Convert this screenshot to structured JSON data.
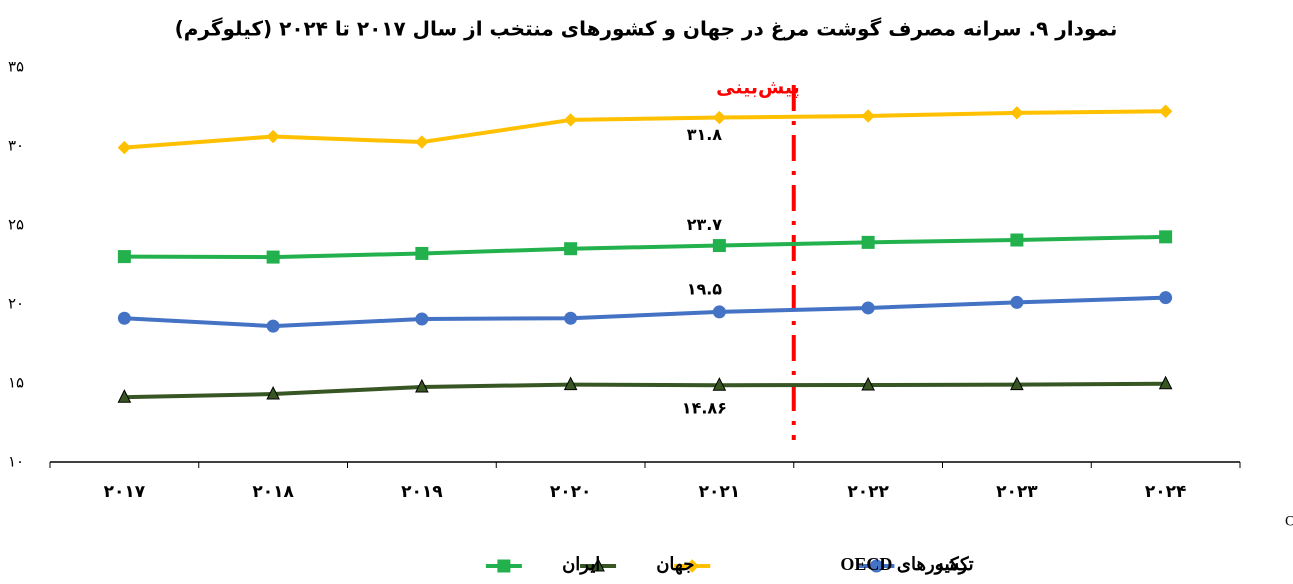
{
  "chart_data": {
    "type": "line",
    "title": "نمودار ۹. سرانه مصرف گوشت مرغ در جهان و کشورهای منتخب از سال ۲۰۱۷ تا ۲۰۲۴ (کیلوگرم)",
    "categories": [
      "۲۰۱۷",
      "۲۰۱۸",
      "۲۰۱۹",
      "۲۰۲۰",
      "۲۰۲۱",
      "۲۰۲۲",
      "۲۰۲۳",
      "۲۰۲۴"
    ],
    "series": [
      {
        "name": "ترکیه",
        "color": "#4472c4",
        "marker": "circle",
        "values": [
          19.1,
          18.6,
          19.05,
          19.1,
          19.5,
          19.75,
          20.1,
          20.4
        ],
        "value_labels": [
          null,
          null,
          null,
          null,
          "۱۹.۵",
          null,
          null,
          null
        ]
      },
      {
        "name": "کشورهای OECD",
        "color": "#ffc000",
        "marker": "diamond",
        "values": [
          29.9,
          30.6,
          30.25,
          31.65,
          31.8,
          31.9,
          32.1,
          32.2
        ],
        "value_labels": [
          null,
          null,
          null,
          null,
          "۳۱.۸",
          null,
          null,
          null
        ]
      },
      {
        "name": "جهان",
        "color": "#375623",
        "marker": "triangle",
        "values": [
          14.1,
          14.3,
          14.75,
          14.9,
          14.86,
          14.87,
          14.9,
          14.95
        ],
        "value_labels": [
          null,
          null,
          null,
          null,
          "۱۴.۸۶",
          null,
          null,
          null
        ]
      },
      {
        "name": "ایران",
        "color": "#22b14c",
        "marker": "square",
        "values": [
          23.0,
          22.97,
          23.2,
          23.5,
          23.7,
          23.9,
          24.05,
          24.25
        ],
        "value_labels": [
          null,
          null,
          null,
          null,
          "۲۳.۷",
          null,
          null,
          null
        ]
      }
    ],
    "ylim": [
      10,
      35
    ],
    "yticks": [
      {
        "value": 10,
        "label": "۱۰"
      },
      {
        "value": 15,
        "label": "۱۵"
      },
      {
        "value": 20,
        "label": "۲۰"
      },
      {
        "value": 25,
        "label": "۲۵"
      },
      {
        "value": 30,
        "label": "۳۰"
      },
      {
        "value": 35,
        "label": "۳۵"
      }
    ],
    "grid": false,
    "legend": "bottom",
    "annotation": "پیش‌بینی",
    "source": "منبع داده‌ها: OECD"
  }
}
